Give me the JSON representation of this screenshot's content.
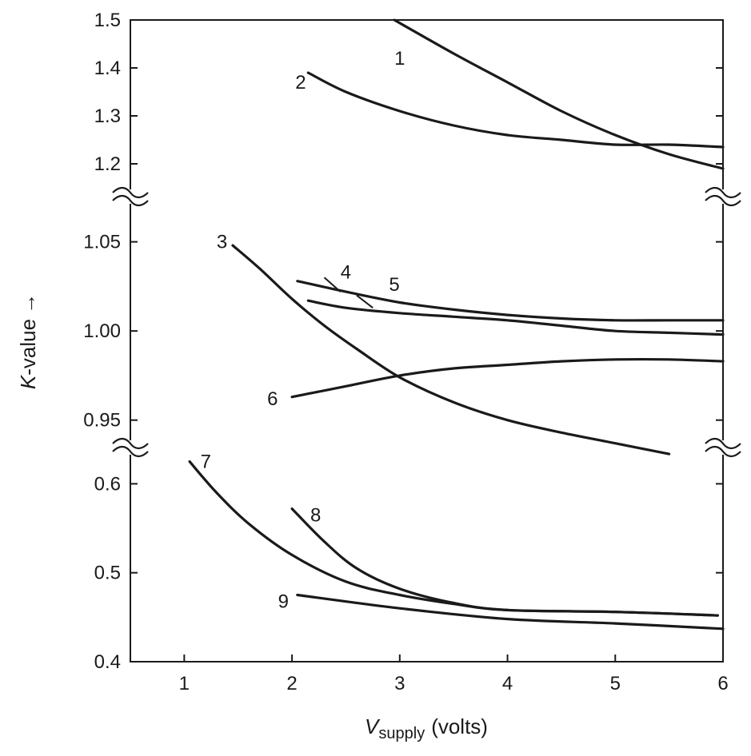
{
  "chart_data": {
    "type": "line",
    "title": "",
    "xlabel": "V",
    "xlabel_sub": "supply",
    "xlabel_unit": "(volts)",
    "ylabel": "K",
    "ylabel_rest": "-value",
    "ylabel_arrow": "→",
    "xlim": [
      0.5,
      6
    ],
    "x_ticks": [
      "1",
      "2",
      "3",
      "4",
      "5",
      "6"
    ],
    "y_segments": [
      {
        "range": [
          1.15,
          1.5
        ],
        "ticks": [
          "1.2",
          "1.3",
          "1.4",
          "1.5"
        ]
      },
      {
        "range": [
          0.94,
          1.07
        ],
        "ticks": [
          "0.95",
          "1.00",
          "1.05"
        ]
      },
      {
        "range": [
          0.4,
          0.63
        ],
        "ticks": [
          "0.4",
          "0.5",
          "0.6"
        ]
      }
    ],
    "axis_breaks": true,
    "grid": false,
    "series": [
      {
        "name": "1",
        "segment": 0,
        "label_at": [
          3.0,
          1.42
        ],
        "points": [
          [
            2.95,
            1.5
          ],
          [
            3.5,
            1.43
          ],
          [
            4.0,
            1.37
          ],
          [
            4.5,
            1.31
          ],
          [
            5.0,
            1.26
          ],
          [
            5.5,
            1.22
          ],
          [
            6.0,
            1.19
          ]
        ]
      },
      {
        "name": "2",
        "segment": 0,
        "label_at": [
          2.08,
          1.37
        ],
        "points": [
          [
            2.15,
            1.39
          ],
          [
            2.5,
            1.35
          ],
          [
            3.0,
            1.31
          ],
          [
            3.5,
            1.28
          ],
          [
            4.0,
            1.26
          ],
          [
            4.5,
            1.25
          ],
          [
            5.0,
            1.24
          ],
          [
            5.5,
            1.24
          ],
          [
            6.0,
            1.235
          ]
        ]
      },
      {
        "name": "3",
        "segment": 1,
        "label_at": [
          1.35,
          1.05
        ],
        "points": [
          [
            1.45,
            1.048
          ],
          [
            1.7,
            1.035
          ],
          [
            2.0,
            1.018
          ],
          [
            2.3,
            1.003
          ],
          [
            2.6,
            0.99
          ],
          [
            3.0,
            0.974
          ],
          [
            3.5,
            0.96
          ],
          [
            4.0,
            0.95
          ],
          [
            4.5,
            0.943
          ],
          [
            5.0,
            0.937
          ],
          [
            5.5,
            0.931
          ]
        ]
      },
      {
        "name": "4",
        "segment": 1,
        "label_at": [
          2.5,
          1.033
        ],
        "points": [
          [
            2.05,
            1.028
          ],
          [
            2.5,
            1.022
          ],
          [
            3.0,
            1.016
          ],
          [
            3.5,
            1.012
          ],
          [
            4.0,
            1.009
          ],
          [
            4.5,
            1.007
          ],
          [
            5.0,
            1.006
          ],
          [
            5.5,
            1.006
          ],
          [
            6.0,
            1.006
          ]
        ]
      },
      {
        "name": "5",
        "segment": 1,
        "label_at": [
          2.95,
          1.026
        ],
        "points": [
          [
            2.15,
            1.017
          ],
          [
            2.5,
            1.013
          ],
          [
            3.0,
            1.01
          ],
          [
            3.5,
            1.008
          ],
          [
            4.0,
            1.006
          ],
          [
            4.5,
            1.003
          ],
          [
            5.0,
            1.0
          ],
          [
            5.5,
            0.999
          ],
          [
            6.0,
            0.998
          ]
        ]
      },
      {
        "name": "6",
        "segment": 1,
        "label_at": [
          1.82,
          0.962
        ],
        "points": [
          [
            2.0,
            0.963
          ],
          [
            2.5,
            0.969
          ],
          [
            3.0,
            0.975
          ],
          [
            3.5,
            0.979
          ],
          [
            4.0,
            0.981
          ],
          [
            4.5,
            0.983
          ],
          [
            5.0,
            0.984
          ],
          [
            5.5,
            0.984
          ],
          [
            6.0,
            0.983
          ]
        ]
      },
      {
        "name": "7",
        "segment": 2,
        "label_at": [
          1.2,
          0.625
        ],
        "points": [
          [
            1.05,
            0.625
          ],
          [
            1.3,
            0.59
          ],
          [
            1.6,
            0.555
          ],
          [
            2.0,
            0.52
          ],
          [
            2.5,
            0.49
          ],
          [
            3.0,
            0.475
          ],
          [
            3.5,
            0.465
          ],
          [
            4.0,
            0.458
          ],
          [
            5.0,
            0.456
          ],
          [
            5.95,
            0.452
          ]
        ]
      },
      {
        "name": "8",
        "segment": 2,
        "label_at": [
          2.22,
          0.565
        ],
        "points": [
          [
            2.0,
            0.572
          ],
          [
            2.3,
            0.535
          ],
          [
            2.6,
            0.505
          ],
          [
            3.0,
            0.482
          ],
          [
            3.5,
            0.466
          ],
          [
            4.0,
            0.458
          ],
          [
            5.0,
            0.456
          ],
          [
            5.95,
            0.452
          ]
        ]
      },
      {
        "name": "9",
        "segment": 2,
        "label_at": [
          1.92,
          0.468
        ],
        "points": [
          [
            2.05,
            0.475
          ],
          [
            3.0,
            0.46
          ],
          [
            4.0,
            0.448
          ],
          [
            5.0,
            0.443
          ],
          [
            6.0,
            0.437
          ]
        ]
      }
    ]
  }
}
